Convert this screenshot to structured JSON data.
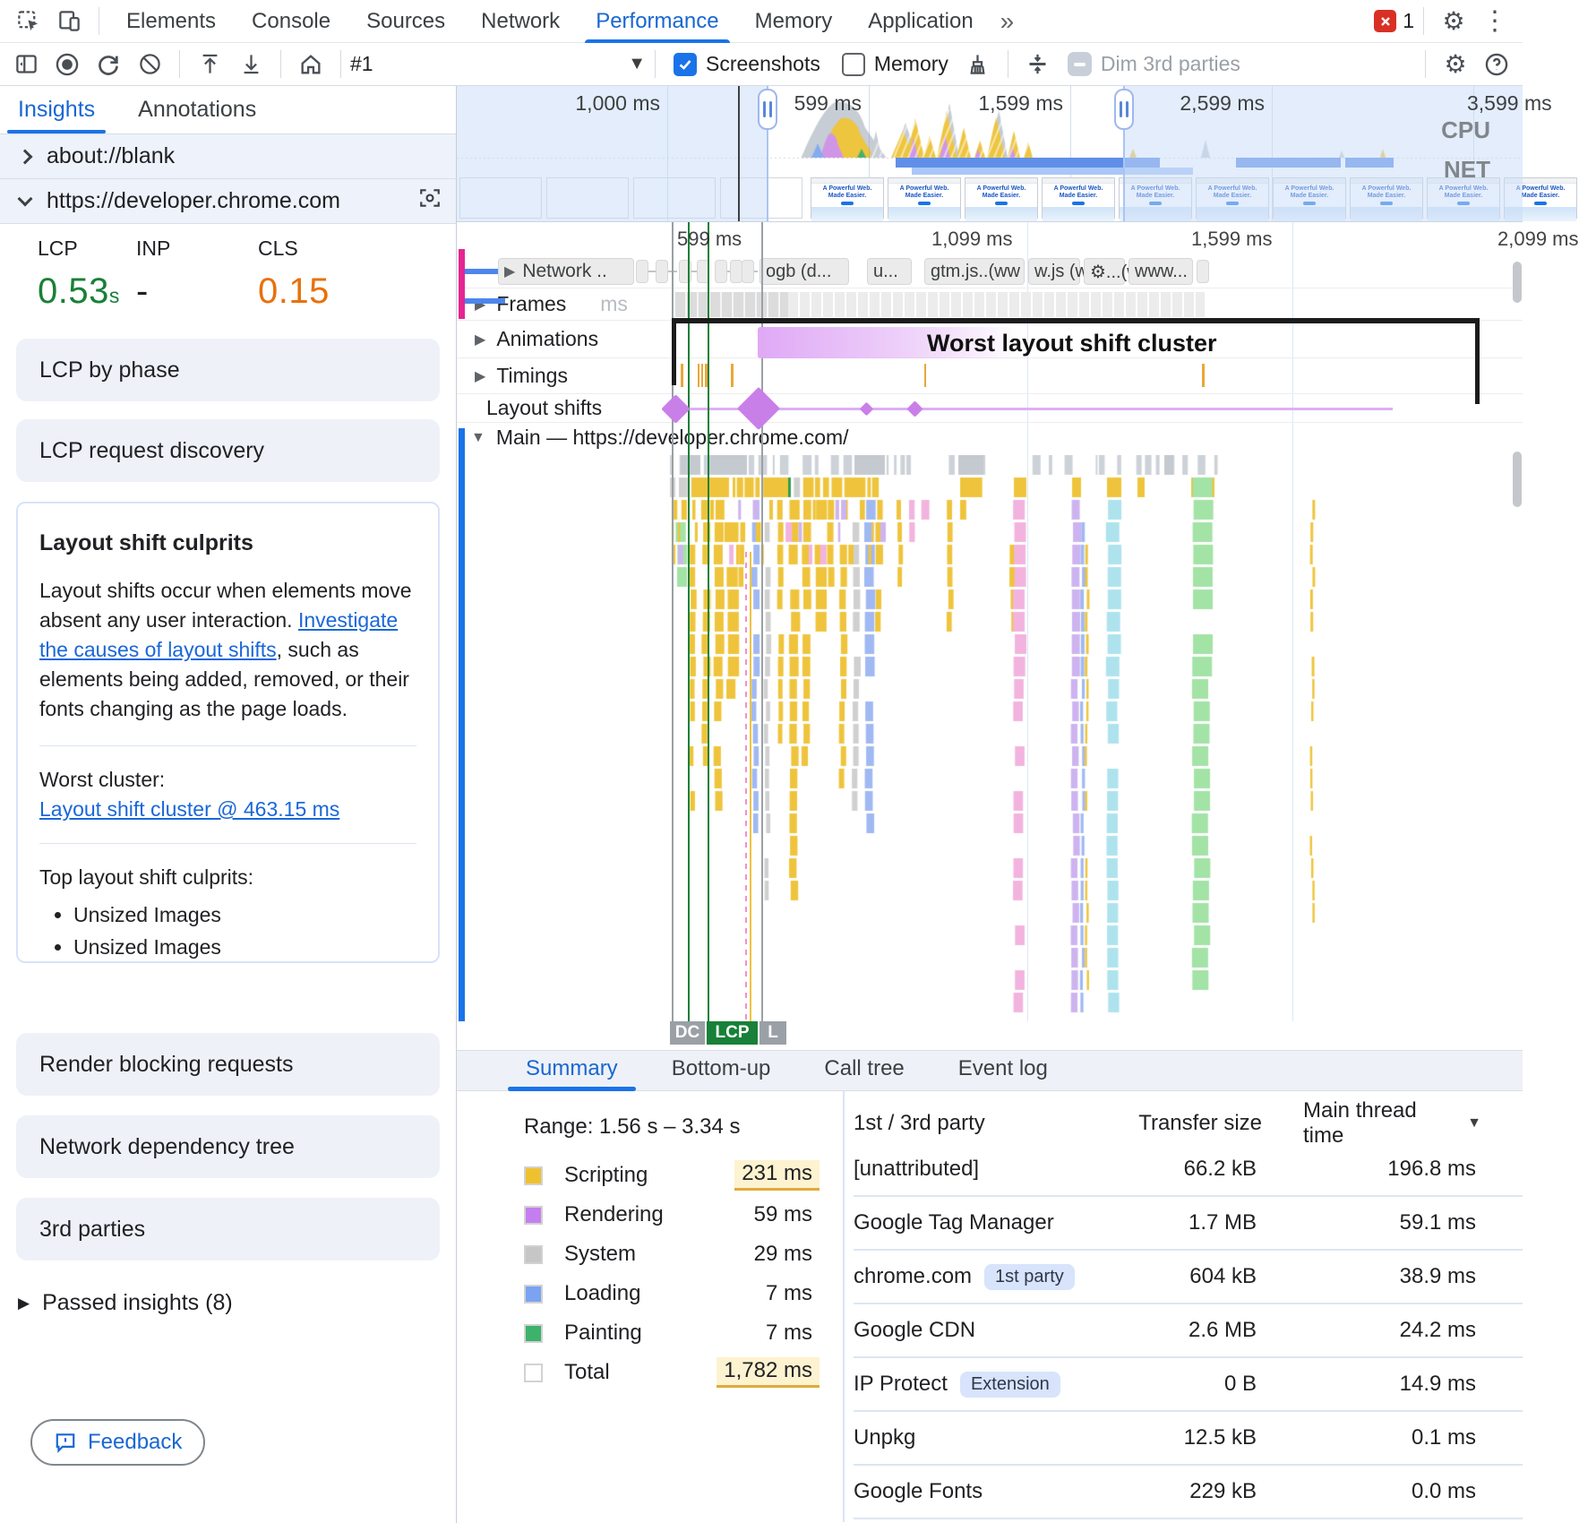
{
  "tabbar": {
    "tabs": [
      "Elements",
      "Console",
      "Sources",
      "Network",
      "Performance",
      "Memory",
      "Application"
    ],
    "active_tab": "Performance",
    "overflow_icon": "»",
    "error_count": "1"
  },
  "toolbar": {
    "recording_label": "#1",
    "screenshots_label": "Screenshots",
    "memory_label": "Memory",
    "dim_3rd_label": "Dim 3rd parties"
  },
  "sidebar": {
    "tabs": [
      {
        "label": "Insights",
        "active": true
      },
      {
        "label": "Annotations",
        "active": false
      }
    ],
    "frames": [
      {
        "label": "about://blank",
        "expanded": false
      },
      {
        "label": "https://developer.chrome.com",
        "expanded": true
      }
    ],
    "metrics": [
      {
        "name": "LCP",
        "value": "0.53",
        "unit": "s",
        "color": "#188038"
      },
      {
        "name": "INP",
        "value": "-",
        "unit": "",
        "color": "#202124"
      },
      {
        "name": "CLS",
        "value": "0.15",
        "unit": "",
        "color": "#e8710a"
      }
    ],
    "insight_cards_top": [
      "LCP by phase",
      "LCP request discovery"
    ],
    "culprits": {
      "title": "Layout shift culprits",
      "body_text": "Layout shifts occur when elements move absent any user interaction. ",
      "body_link": "Investigate the causes of layout shifts",
      "body_tail": ", such as elements being added, removed, or their fonts changing as the page loads.",
      "worst_cluster_label": "Worst cluster:",
      "worst_cluster_link": "Layout shift cluster @ 463.15 ms",
      "top_culprits_label": "Top layout shift culprits:",
      "top_culprits": [
        "Unsized Images",
        "Unsized Images"
      ]
    },
    "insight_cards_bottom": [
      "Render blocking requests",
      "Network dependency tree",
      "3rd parties"
    ],
    "passed_insights_label": "Passed insights (8)",
    "feedback_label": "Feedback"
  },
  "minimap": {
    "time_labels": [
      "1,000 ms",
      "599 ms",
      "1,599 ms",
      "2,599 ms",
      "3,599 ms"
    ],
    "cpu_label": "CPU",
    "net_label": "NET",
    "thumb_title_line1": "A Powerful Web.",
    "thumb_title_line2": "Made Easier."
  },
  "tracks": {
    "ruler_labels": [
      "599 ms",
      "1,099 ms",
      "1,599 ms",
      "2,099 ms"
    ],
    "network_label": "Network ..",
    "frames_label": "Frames",
    "frames_ghost": "ms",
    "animations_label": "Animations",
    "timings_label": "Timings",
    "layout_shifts_label": "Layout shifts",
    "cluster_caption": "Worst layout shift cluster",
    "main_label": "Main — https://developer.chrome.com/",
    "network_chips": [
      "ogb (d...",
      "u...",
      "gtm.js..(ww",
      "w.js (w.",
      "⚙...(w",
      "www..."
    ],
    "markers": [
      {
        "label": "DC",
        "color": "#9aa0a6"
      },
      {
        "label": "LCP",
        "color": "#188038"
      },
      {
        "label": "L",
        "color": "#9aa0a6"
      }
    ]
  },
  "bottom": {
    "tabs": [
      "Summary",
      "Bottom-up",
      "Call tree",
      "Event log"
    ],
    "active_tab": "Summary",
    "range_label": "Range: 1.56 s – 3.34 s",
    "legend": [
      {
        "label": "Scripting",
        "value": "231 ms",
        "color": "#f0c12f",
        "highlight": true
      },
      {
        "label": "Rendering",
        "value": "59 ms",
        "color": "#c57ef0",
        "highlight": false
      },
      {
        "label": "System",
        "value": "29 ms",
        "color": "#c6c6c6",
        "highlight": false
      },
      {
        "label": "Loading",
        "value": "7 ms",
        "color": "#7aa3f2",
        "highlight": false
      },
      {
        "label": "Painting",
        "value": "7 ms",
        "color": "#3db26a",
        "highlight": false
      },
      {
        "label": "Total",
        "value": "1,782 ms",
        "color": "#ffffff",
        "highlight": true
      }
    ],
    "table": {
      "columns": [
        "1st / 3rd party",
        "Transfer size",
        "Main thread time"
      ],
      "sort_column": "Main thread time",
      "rows": [
        {
          "name": "[unattributed]",
          "badge": "",
          "size": "66.2 kB",
          "time": "196.8 ms"
        },
        {
          "name": "Google Tag Manager",
          "badge": "",
          "size": "1.7 MB",
          "time": "59.1 ms"
        },
        {
          "name": "chrome.com",
          "badge": "1st party",
          "size": "604 kB",
          "time": "38.9 ms"
        },
        {
          "name": "Google CDN",
          "badge": "",
          "size": "2.6 MB",
          "time": "24.2 ms"
        },
        {
          "name": "IP Protect",
          "badge": "Extension",
          "size": "0 B",
          "time": "14.9 ms"
        },
        {
          "name": "Unpkg",
          "badge": "",
          "size": "12.5 kB",
          "time": "0.1 ms"
        },
        {
          "name": "Google Fonts",
          "badge": "",
          "size": "229 kB",
          "time": "0.0 ms"
        }
      ]
    }
  }
}
